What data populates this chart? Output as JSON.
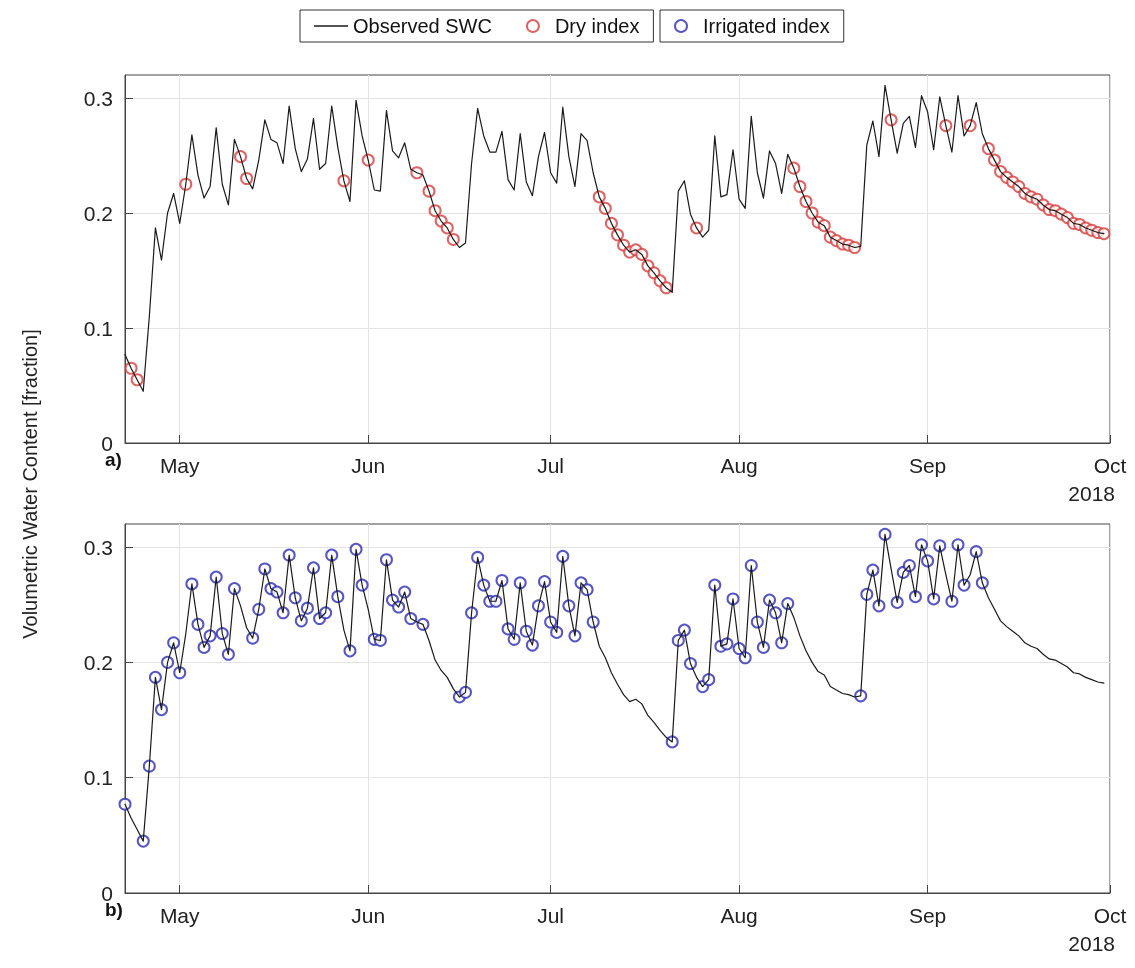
{
  "chart_data": [
    {
      "type": "line",
      "title": "a)",
      "ylabel": "Volumetric Water Content [fraction]",
      "annotations": [
        "2018"
      ],
      "legend": "top",
      "grid": true,
      "xlim": [
        "2018-04-22",
        "2018-10-01"
      ],
      "xticks": [
        {
          "value": "2018-05-01",
          "label": "May"
        },
        {
          "value": "2018-06-01",
          "label": "Jun"
        },
        {
          "value": "2018-07-01",
          "label": "Jul"
        },
        {
          "value": "2018-08-01",
          "label": "Aug"
        },
        {
          "value": "2018-09-01",
          "label": "Sep"
        },
        {
          "value": "2018-10-01",
          "label": "Oct"
        }
      ],
      "ylim": [
        0,
        0.32
      ],
      "yticks": [
        0,
        0.1,
        0.2,
        0.3
      ],
      "x": [
        "2018-04-22",
        "2018-04-23",
        "2018-04-24",
        "2018-04-25",
        "2018-04-26",
        "2018-04-27",
        "2018-04-28",
        "2018-04-29",
        "2018-04-30",
        "2018-05-01",
        "2018-05-02",
        "2018-05-03",
        "2018-05-04",
        "2018-05-05",
        "2018-05-06",
        "2018-05-07",
        "2018-05-08",
        "2018-05-09",
        "2018-05-10",
        "2018-05-11",
        "2018-05-12",
        "2018-05-13",
        "2018-05-14",
        "2018-05-15",
        "2018-05-16",
        "2018-05-17",
        "2018-05-18",
        "2018-05-19",
        "2018-05-20",
        "2018-05-21",
        "2018-05-22",
        "2018-05-23",
        "2018-05-24",
        "2018-05-25",
        "2018-05-26",
        "2018-05-27",
        "2018-05-28",
        "2018-05-29",
        "2018-05-30",
        "2018-05-31",
        "2018-06-01",
        "2018-06-02",
        "2018-06-03",
        "2018-06-04",
        "2018-06-05",
        "2018-06-06",
        "2018-06-07",
        "2018-06-08",
        "2018-06-09",
        "2018-06-10",
        "2018-06-11",
        "2018-06-12",
        "2018-06-13",
        "2018-06-14",
        "2018-06-15",
        "2018-06-16",
        "2018-06-17",
        "2018-06-18",
        "2018-06-19",
        "2018-06-20",
        "2018-06-21",
        "2018-06-22",
        "2018-06-23",
        "2018-06-24",
        "2018-06-25",
        "2018-06-26",
        "2018-06-27",
        "2018-06-28",
        "2018-06-29",
        "2018-06-30",
        "2018-07-01",
        "2018-07-02",
        "2018-07-03",
        "2018-07-04",
        "2018-07-05",
        "2018-07-06",
        "2018-07-07",
        "2018-07-08",
        "2018-07-09",
        "2018-07-10",
        "2018-07-11",
        "2018-07-12",
        "2018-07-13",
        "2018-07-14",
        "2018-07-15",
        "2018-07-16",
        "2018-07-17",
        "2018-07-18",
        "2018-07-19",
        "2018-07-20",
        "2018-07-21",
        "2018-07-22",
        "2018-07-23",
        "2018-07-24",
        "2018-07-25",
        "2018-07-26",
        "2018-07-27",
        "2018-07-28",
        "2018-07-29",
        "2018-07-30",
        "2018-07-31",
        "2018-08-01",
        "2018-08-02",
        "2018-08-03",
        "2018-08-04",
        "2018-08-05",
        "2018-08-06",
        "2018-08-07",
        "2018-08-08",
        "2018-08-09",
        "2018-08-10",
        "2018-08-11",
        "2018-08-12",
        "2018-08-13",
        "2018-08-14",
        "2018-08-15",
        "2018-08-16",
        "2018-08-17",
        "2018-08-18",
        "2018-08-19",
        "2018-08-20",
        "2018-08-21",
        "2018-08-22",
        "2018-08-23",
        "2018-08-24",
        "2018-08-25",
        "2018-08-26",
        "2018-08-27",
        "2018-08-28",
        "2018-08-29",
        "2018-08-30",
        "2018-08-31",
        "2018-09-01",
        "2018-09-02",
        "2018-09-03",
        "2018-09-04",
        "2018-09-05",
        "2018-09-06",
        "2018-09-07",
        "2018-09-08",
        "2018-09-09",
        "2018-09-10",
        "2018-09-11",
        "2018-09-12",
        "2018-09-13",
        "2018-09-14",
        "2018-09-15",
        "2018-09-16",
        "2018-09-17",
        "2018-09-18",
        "2018-09-19",
        "2018-09-20",
        "2018-09-21",
        "2018-09-22",
        "2018-09-23",
        "2018-09-24",
        "2018-09-25",
        "2018-09-26",
        "2018-09-27",
        "2018-09-28",
        "2018-09-29",
        "2018-09-30"
      ],
      "series": [
        {
          "name": "Observed SWC",
          "marker": "none",
          "line_style": "solid",
          "color": "#1a1a1a",
          "values": [
            0.077,
            0.065,
            0.055,
            0.045,
            0.11,
            0.187,
            0.159,
            0.2,
            0.217,
            0.191,
            0.225,
            0.268,
            0.233,
            0.213,
            0.223,
            0.274,
            0.225,
            0.207,
            0.264,
            0.249,
            0.23,
            0.221,
            0.246,
            0.281,
            0.264,
            0.261,
            0.243,
            0.293,
            0.256,
            0.236,
            0.247,
            0.282,
            0.238,
            0.243,
            0.293,
            0.257,
            0.228,
            0.21,
            0.298,
            0.267,
            0.246,
            0.22,
            0.219,
            0.289,
            0.254,
            0.248,
            0.261,
            0.238,
            0.235,
            0.233,
            0.219,
            0.202,
            0.193,
            0.187,
            0.177,
            0.17,
            0.174,
            0.243,
            0.291,
            0.267,
            0.253,
            0.253,
            0.271,
            0.229,
            0.22,
            0.269,
            0.227,
            0.215,
            0.249,
            0.27,
            0.235,
            0.226,
            0.292,
            0.249,
            0.223,
            0.269,
            0.263,
            0.235,
            0.214,
            0.204,
            0.191,
            0.181,
            0.172,
            0.166,
            0.168,
            0.164,
            0.154,
            0.148,
            0.141,
            0.135,
            0.131,
            0.219,
            0.228,
            0.199,
            0.187,
            0.179,
            0.185,
            0.267,
            0.214,
            0.216,
            0.255,
            0.212,
            0.204,
            0.284,
            0.235,
            0.213,
            0.254,
            0.243,
            0.217,
            0.251,
            0.239,
            0.223,
            0.21,
            0.2,
            0.192,
            0.189,
            0.179,
            0.176,
            0.173,
            0.172,
            0.17,
            0.171,
            0.259,
            0.28,
            0.249,
            0.311,
            0.281,
            0.252,
            0.278,
            0.284,
            0.257,
            0.302,
            0.288,
            0.255,
            0.301,
            0.276,
            0.253,
            0.302,
            0.267,
            0.276,
            0.296,
            0.269,
            0.256,
            0.246,
            0.236,
            0.231,
            0.227,
            0.223,
            0.217,
            0.214,
            0.212,
            0.207,
            0.203,
            0.202,
            0.199,
            0.196,
            0.191,
            0.19,
            0.187,
            0.185,
            0.183,
            0.182
          ]
        },
        {
          "name": "Dry index",
          "type": "scatter",
          "marker": "circle",
          "color": "#d63c3c",
          "x": [
            "2018-04-23",
            "2018-04-24",
            "2018-05-02",
            "2018-05-11",
            "2018-05-12",
            "2018-05-28",
            "2018-06-01",
            "2018-06-09",
            "2018-06-11",
            "2018-06-12",
            "2018-06-13",
            "2018-06-14",
            "2018-06-15",
            "2018-07-09",
            "2018-07-10",
            "2018-07-11",
            "2018-07-12",
            "2018-07-13",
            "2018-07-14",
            "2018-07-15",
            "2018-07-16",
            "2018-07-17",
            "2018-07-18",
            "2018-07-19",
            "2018-07-20",
            "2018-07-25",
            "2018-08-10",
            "2018-08-11",
            "2018-08-12",
            "2018-08-13",
            "2018-08-14",
            "2018-08-15",
            "2018-08-16",
            "2018-08-17",
            "2018-08-18",
            "2018-08-19",
            "2018-08-20",
            "2018-08-26",
            "2018-09-04",
            "2018-09-08",
            "2018-09-11",
            "2018-09-12",
            "2018-09-13",
            "2018-09-14",
            "2018-09-15",
            "2018-09-16",
            "2018-09-17",
            "2018-09-18",
            "2018-09-19",
            "2018-09-20",
            "2018-09-21",
            "2018-09-22",
            "2018-09-23",
            "2018-09-24",
            "2018-09-25",
            "2018-09-26",
            "2018-09-27",
            "2018-09-28",
            "2018-09-29",
            "2018-09-30"
          ],
          "values": [
            0.065,
            0.055,
            0.225,
            0.249,
            0.23,
            0.228,
            0.246,
            0.235,
            0.219,
            0.202,
            0.193,
            0.187,
            0.177,
            0.214,
            0.204,
            0.191,
            0.181,
            0.172,
            0.166,
            0.168,
            0.164,
            0.154,
            0.148,
            0.141,
            0.135,
            0.187,
            0.239,
            0.223,
            0.21,
            0.2,
            0.192,
            0.189,
            0.179,
            0.176,
            0.173,
            0.172,
            0.17,
            0.281,
            0.276,
            0.276,
            0.256,
            0.246,
            0.236,
            0.231,
            0.227,
            0.223,
            0.217,
            0.214,
            0.212,
            0.207,
            0.203,
            0.202,
            0.199,
            0.196,
            0.191,
            0.19,
            0.187,
            0.185,
            0.183,
            0.182
          ]
        }
      ]
    },
    {
      "type": "line",
      "title": "b)",
      "annotations": [
        "2018"
      ],
      "legend": "top",
      "grid": true,
      "xlim": [
        "2018-04-22",
        "2018-10-01"
      ],
      "xticks": [
        {
          "value": "2018-05-01",
          "label": "May"
        },
        {
          "value": "2018-06-01",
          "label": "Jun"
        },
        {
          "value": "2018-07-01",
          "label": "Jul"
        },
        {
          "value": "2018-08-01",
          "label": "Aug"
        },
        {
          "value": "2018-09-01",
          "label": "Sep"
        },
        {
          "value": "2018-10-01",
          "label": "Oct"
        }
      ],
      "ylim": [
        0,
        0.32
      ],
      "yticks": [
        0,
        0.1,
        0.2,
        0.3
      ],
      "x": [
        "2018-04-22",
        "2018-04-23",
        "2018-04-24",
        "2018-04-25",
        "2018-04-26",
        "2018-04-27",
        "2018-04-28",
        "2018-04-29",
        "2018-04-30",
        "2018-05-01",
        "2018-05-02",
        "2018-05-03",
        "2018-05-04",
        "2018-05-05",
        "2018-05-06",
        "2018-05-07",
        "2018-05-08",
        "2018-05-09",
        "2018-05-10",
        "2018-05-11",
        "2018-05-12",
        "2018-05-13",
        "2018-05-14",
        "2018-05-15",
        "2018-05-16",
        "2018-05-17",
        "2018-05-18",
        "2018-05-19",
        "2018-05-20",
        "2018-05-21",
        "2018-05-22",
        "2018-05-23",
        "2018-05-24",
        "2018-05-25",
        "2018-05-26",
        "2018-05-27",
        "2018-05-28",
        "2018-05-29",
        "2018-05-30",
        "2018-05-31",
        "2018-06-01",
        "2018-06-02",
        "2018-06-03",
        "2018-06-04",
        "2018-06-05",
        "2018-06-06",
        "2018-06-07",
        "2018-06-08",
        "2018-06-09",
        "2018-06-10",
        "2018-06-11",
        "2018-06-12",
        "2018-06-13",
        "2018-06-14",
        "2018-06-15",
        "2018-06-16",
        "2018-06-17",
        "2018-06-18",
        "2018-06-19",
        "2018-06-20",
        "2018-06-21",
        "2018-06-22",
        "2018-06-23",
        "2018-06-24",
        "2018-06-25",
        "2018-06-26",
        "2018-06-27",
        "2018-06-28",
        "2018-06-29",
        "2018-06-30",
        "2018-07-01",
        "2018-07-02",
        "2018-07-03",
        "2018-07-04",
        "2018-07-05",
        "2018-07-06",
        "2018-07-07",
        "2018-07-08",
        "2018-07-09",
        "2018-07-10",
        "2018-07-11",
        "2018-07-12",
        "2018-07-13",
        "2018-07-14",
        "2018-07-15",
        "2018-07-16",
        "2018-07-17",
        "2018-07-18",
        "2018-07-19",
        "2018-07-20",
        "2018-07-21",
        "2018-07-22",
        "2018-07-23",
        "2018-07-24",
        "2018-07-25",
        "2018-07-26",
        "2018-07-27",
        "2018-07-28",
        "2018-07-29",
        "2018-07-30",
        "2018-07-31",
        "2018-08-01",
        "2018-08-02",
        "2018-08-03",
        "2018-08-04",
        "2018-08-05",
        "2018-08-06",
        "2018-08-07",
        "2018-08-08",
        "2018-08-09",
        "2018-08-10",
        "2018-08-11",
        "2018-08-12",
        "2018-08-13",
        "2018-08-14",
        "2018-08-15",
        "2018-08-16",
        "2018-08-17",
        "2018-08-18",
        "2018-08-19",
        "2018-08-20",
        "2018-08-21",
        "2018-08-22",
        "2018-08-23",
        "2018-08-24",
        "2018-08-25",
        "2018-08-26",
        "2018-08-27",
        "2018-08-28",
        "2018-08-29",
        "2018-08-30",
        "2018-08-31",
        "2018-09-01",
        "2018-09-02",
        "2018-09-03",
        "2018-09-04",
        "2018-09-05",
        "2018-09-06",
        "2018-09-07",
        "2018-09-08",
        "2018-09-09",
        "2018-09-10",
        "2018-09-11",
        "2018-09-12",
        "2018-09-13",
        "2018-09-14",
        "2018-09-15",
        "2018-09-16",
        "2018-09-17",
        "2018-09-18",
        "2018-09-19",
        "2018-09-20",
        "2018-09-21",
        "2018-09-22",
        "2018-09-23",
        "2018-09-24",
        "2018-09-25",
        "2018-09-26",
        "2018-09-27",
        "2018-09-28",
        "2018-09-29",
        "2018-09-30"
      ],
      "series": [
        {
          "marker": "none",
          "line_style": "solid",
          "color": "#1a1a1a",
          "values": [
            0.077,
            0.065,
            0.055,
            0.045,
            0.11,
            0.187,
            0.159,
            0.2,
            0.217,
            0.191,
            0.225,
            0.268,
            0.233,
            0.213,
            0.223,
            0.274,
            0.225,
            0.207,
            0.264,
            0.249,
            0.23,
            0.221,
            0.246,
            0.281,
            0.264,
            0.261,
            0.243,
            0.293,
            0.256,
            0.236,
            0.247,
            0.282,
            0.238,
            0.243,
            0.293,
            0.257,
            0.228,
            0.21,
            0.298,
            0.267,
            0.246,
            0.22,
            0.219,
            0.289,
            0.254,
            0.248,
            0.261,
            0.238,
            0.235,
            0.233,
            0.219,
            0.202,
            0.193,
            0.187,
            0.177,
            0.17,
            0.174,
            0.243,
            0.291,
            0.267,
            0.253,
            0.253,
            0.271,
            0.229,
            0.22,
            0.269,
            0.227,
            0.215,
            0.249,
            0.27,
            0.235,
            0.226,
            0.292,
            0.249,
            0.223,
            0.269,
            0.263,
            0.235,
            0.214,
            0.204,
            0.191,
            0.181,
            0.172,
            0.166,
            0.168,
            0.164,
            0.154,
            0.148,
            0.141,
            0.135,
            0.131,
            0.219,
            0.228,
            0.199,
            0.187,
            0.179,
            0.185,
            0.267,
            0.214,
            0.216,
            0.255,
            0.212,
            0.204,
            0.284,
            0.235,
            0.213,
            0.254,
            0.243,
            0.217,
            0.251,
            0.239,
            0.223,
            0.21,
            0.2,
            0.192,
            0.189,
            0.179,
            0.176,
            0.173,
            0.172,
            0.17,
            0.171,
            0.259,
            0.28,
            0.249,
            0.311,
            0.281,
            0.252,
            0.278,
            0.284,
            0.257,
            0.302,
            0.288,
            0.255,
            0.301,
            0.276,
            0.253,
            0.302,
            0.267,
            0.276,
            0.296,
            0.269,
            0.256,
            0.246,
            0.236,
            0.231,
            0.227,
            0.223,
            0.217,
            0.214,
            0.212,
            0.207,
            0.203,
            0.202,
            0.199,
            0.196,
            0.191,
            0.19,
            0.187,
            0.185,
            0.183,
            0.182
          ]
        },
        {
          "name": "Irrigated index",
          "type": "scatter",
          "marker": "circle",
          "color": "#2c2cb4",
          "x": [
            "2018-04-22",
            "2018-04-25",
            "2018-04-26",
            "2018-04-27",
            "2018-04-28",
            "2018-04-29",
            "2018-04-30",
            "2018-05-01",
            "2018-05-03",
            "2018-05-04",
            "2018-05-05",
            "2018-05-06",
            "2018-05-07",
            "2018-05-08",
            "2018-05-09",
            "2018-05-10",
            "2018-05-13",
            "2018-05-14",
            "2018-05-15",
            "2018-05-16",
            "2018-05-17",
            "2018-05-18",
            "2018-05-19",
            "2018-05-20",
            "2018-05-21",
            "2018-05-22",
            "2018-05-23",
            "2018-05-24",
            "2018-05-25",
            "2018-05-26",
            "2018-05-27",
            "2018-05-29",
            "2018-05-30",
            "2018-05-31",
            "2018-06-02",
            "2018-06-03",
            "2018-06-04",
            "2018-06-05",
            "2018-06-06",
            "2018-06-07",
            "2018-06-08",
            "2018-06-10",
            "2018-06-16",
            "2018-06-17",
            "2018-06-18",
            "2018-06-19",
            "2018-06-20",
            "2018-06-21",
            "2018-06-22",
            "2018-06-23",
            "2018-06-24",
            "2018-06-25",
            "2018-06-26",
            "2018-06-27",
            "2018-06-28",
            "2018-06-29",
            "2018-06-30",
            "2018-07-01",
            "2018-07-02",
            "2018-07-03",
            "2018-07-04",
            "2018-07-05",
            "2018-07-06",
            "2018-07-07",
            "2018-07-08",
            "2018-07-21",
            "2018-07-22",
            "2018-07-23",
            "2018-07-24",
            "2018-07-26",
            "2018-07-27",
            "2018-07-28",
            "2018-07-29",
            "2018-07-30",
            "2018-07-31",
            "2018-08-01",
            "2018-08-02",
            "2018-08-03",
            "2018-08-04",
            "2018-08-05",
            "2018-08-06",
            "2018-08-07",
            "2018-08-08",
            "2018-08-09",
            "2018-08-21",
            "2018-08-22",
            "2018-08-23",
            "2018-08-24",
            "2018-08-25",
            "2018-08-27",
            "2018-08-28",
            "2018-08-29",
            "2018-08-30",
            "2018-08-31",
            "2018-09-01",
            "2018-09-02",
            "2018-09-03",
            "2018-09-05",
            "2018-09-06",
            "2018-09-07",
            "2018-09-09",
            "2018-09-10"
          ],
          "values": [
            0.077,
            0.045,
            0.11,
            0.187,
            0.159,
            0.2,
            0.217,
            0.191,
            0.268,
            0.233,
            0.213,
            0.223,
            0.274,
            0.225,
            0.207,
            0.264,
            0.221,
            0.246,
            0.281,
            0.264,
            0.261,
            0.243,
            0.293,
            0.256,
            0.236,
            0.247,
            0.282,
            0.238,
            0.243,
            0.293,
            0.257,
            0.21,
            0.298,
            0.267,
            0.22,
            0.219,
            0.289,
            0.254,
            0.248,
            0.261,
            0.238,
            0.233,
            0.17,
            0.174,
            0.243,
            0.291,
            0.267,
            0.253,
            0.253,
            0.271,
            0.229,
            0.22,
            0.269,
            0.227,
            0.215,
            0.249,
            0.27,
            0.235,
            0.226,
            0.292,
            0.249,
            0.223,
            0.269,
            0.263,
            0.235,
            0.131,
            0.219,
            0.228,
            0.199,
            0.179,
            0.185,
            0.267,
            0.214,
            0.216,
            0.255,
            0.212,
            0.204,
            0.284,
            0.235,
            0.213,
            0.254,
            0.243,
            0.217,
            0.251,
            0.171,
            0.259,
            0.28,
            0.249,
            0.311,
            0.252,
            0.278,
            0.284,
            0.257,
            0.302,
            0.288,
            0.255,
            0.301,
            0.253,
            0.302,
            0.267,
            0.296,
            0.269
          ]
        }
      ]
    }
  ]
}
